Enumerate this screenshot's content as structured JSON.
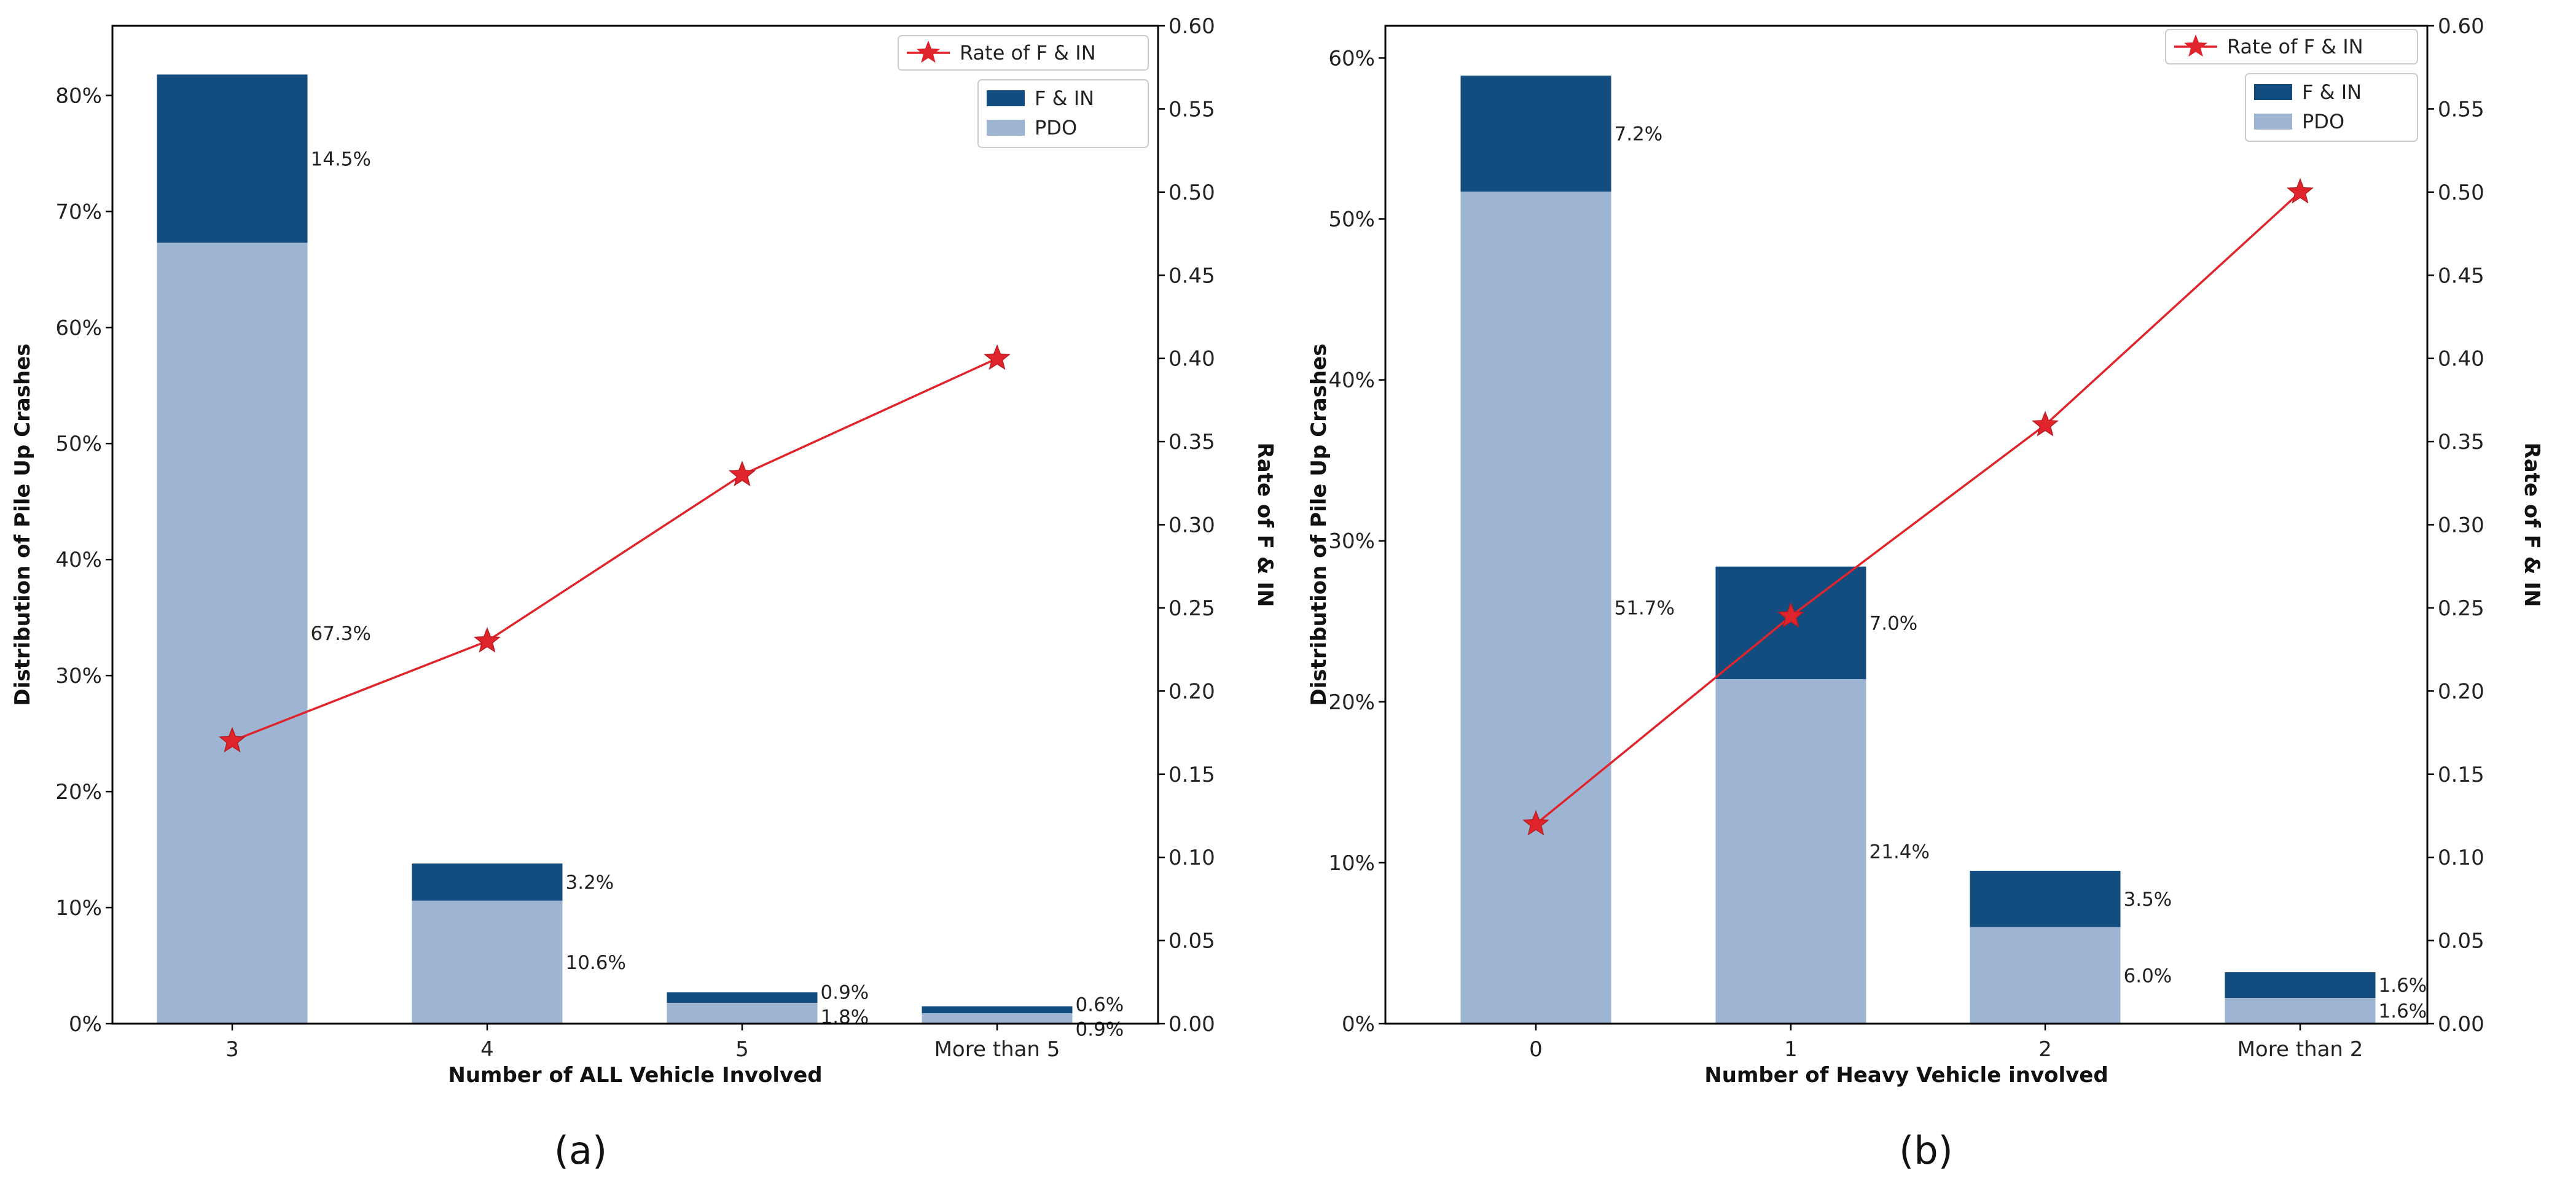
{
  "chart_data": [
    {
      "type": "bar",
      "panel_label": "(a)",
      "stacked": true,
      "categories": [
        "3",
        "4",
        "5",
        "More than 5"
      ],
      "series": [
        {
          "name": "PDO",
          "values": [
            67.3,
            10.6,
            1.8,
            0.9
          ],
          "labels": [
            "67.3%",
            "10.6%",
            "1.8%",
            "0.9%"
          ],
          "color": "#9db5d2"
        },
        {
          "name": "F & IN",
          "values": [
            14.5,
            3.2,
            0.9,
            0.6
          ],
          "labels": [
            "14.5%",
            "3.2%",
            "0.9%",
            "0.6%"
          ],
          "color": "#134d80"
        }
      ],
      "line_series": {
        "name": "Rate of F & IN",
        "values": [
          0.17,
          0.23,
          0.33,
          0.4
        ],
        "color": "#e0242b",
        "axis": "right"
      },
      "xlabel": "Number of ALL Vehicle Involved",
      "ylabel": "Distribution of Pile Up Crashes",
      "y2label": "Rate of F & IN",
      "ylim": [
        0,
        86
      ],
      "yticks": [
        0,
        10,
        20,
        30,
        40,
        50,
        60,
        70,
        80
      ],
      "ytick_labels": [
        "0%",
        "10%",
        "20%",
        "30%",
        "40%",
        "50%",
        "60%",
        "70%",
        "80%"
      ],
      "y2lim": [
        0,
        0.6
      ],
      "y2ticks": [
        0,
        0.05,
        0.1,
        0.15,
        0.2,
        0.25,
        0.3,
        0.35,
        0.4,
        0.45,
        0.5,
        0.55,
        0.6
      ],
      "y2tick_labels": [
        "0.00",
        "0.05",
        "0.10",
        "0.15",
        "0.20",
        "0.25",
        "0.30",
        "0.35",
        "0.40",
        "0.45",
        "0.50",
        "0.55",
        "0.60"
      ],
      "legend": {
        "placement": "top-right",
        "line_entry": "Rate of F & IN",
        "bar_entries": [
          "F & IN",
          "PDO"
        ]
      },
      "grid": false
    },
    {
      "type": "bar",
      "panel_label": "(b)",
      "stacked": true,
      "categories": [
        "0",
        "1",
        "2",
        "More than 2"
      ],
      "series": [
        {
          "name": "PDO",
          "values": [
            51.7,
            21.4,
            6.0,
            1.6
          ],
          "labels": [
            "51.7%",
            "21.4%",
            "6.0%",
            "1.6%"
          ],
          "color": "#9db5d2"
        },
        {
          "name": "F & IN",
          "values": [
            7.2,
            7.0,
            3.5,
            1.6
          ],
          "labels": [
            "7.2%",
            "7.0%",
            "3.5%",
            "1.6%"
          ],
          "color": "#134d80"
        }
      ],
      "line_series": {
        "name": "Rate of F & IN",
        "values": [
          0.12,
          0.245,
          0.36,
          0.5
        ],
        "color": "#e0242b",
        "axis": "right"
      },
      "xlabel": "Number of Heavy Vehicle involved",
      "ylabel": "Distribution of Pile Up Crashes",
      "y2label": "Rate of F & IN",
      "ylim": [
        0,
        62
      ],
      "yticks": [
        0,
        10,
        20,
        30,
        40,
        50,
        60
      ],
      "ytick_labels": [
        "0%",
        "10%",
        "20%",
        "30%",
        "40%",
        "50%",
        "60%"
      ],
      "y2lim": [
        0,
        0.6
      ],
      "y2ticks": [
        0,
        0.05,
        0.1,
        0.15,
        0.2,
        0.25,
        0.3,
        0.35,
        0.4,
        0.45,
        0.5,
        0.55,
        0.6
      ],
      "y2tick_labels": [
        "0.00",
        "0.05",
        "0.10",
        "0.15",
        "0.20",
        "0.25",
        "0.30",
        "0.35",
        "0.40",
        "0.45",
        "0.50",
        "0.55",
        "0.60"
      ],
      "legend": {
        "placement": "top-right",
        "line_entry": "Rate of F & IN",
        "bar_entries": [
          "F & IN",
          "PDO"
        ]
      },
      "grid": false
    }
  ]
}
